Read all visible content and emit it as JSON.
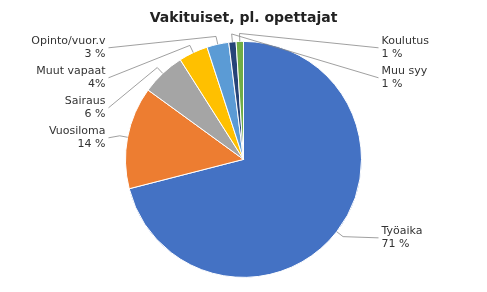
{
  "chart_data": {
    "type": "pie",
    "title": "Vakituiset, pl. opettajat",
    "categories": [
      "Työaika",
      "Vuosiloma",
      "Sairaus",
      "Muut vapaat",
      "Opinto/vuor.v",
      "Muu syy",
      "Koulutus"
    ],
    "values": [
      71,
      14,
      6,
      4,
      3,
      1,
      1
    ],
    "value_labels": [
      "71 %",
      "14 %",
      "6 %",
      "4%",
      "3 %",
      "1 %",
      "1 %"
    ],
    "colors": [
      "#4472C4",
      "#ED7D31",
      "#A5A5A5",
      "#FFC000",
      "#5B9BD5",
      "#264478",
      "#70AD47"
    ],
    "data_labels": true
  }
}
